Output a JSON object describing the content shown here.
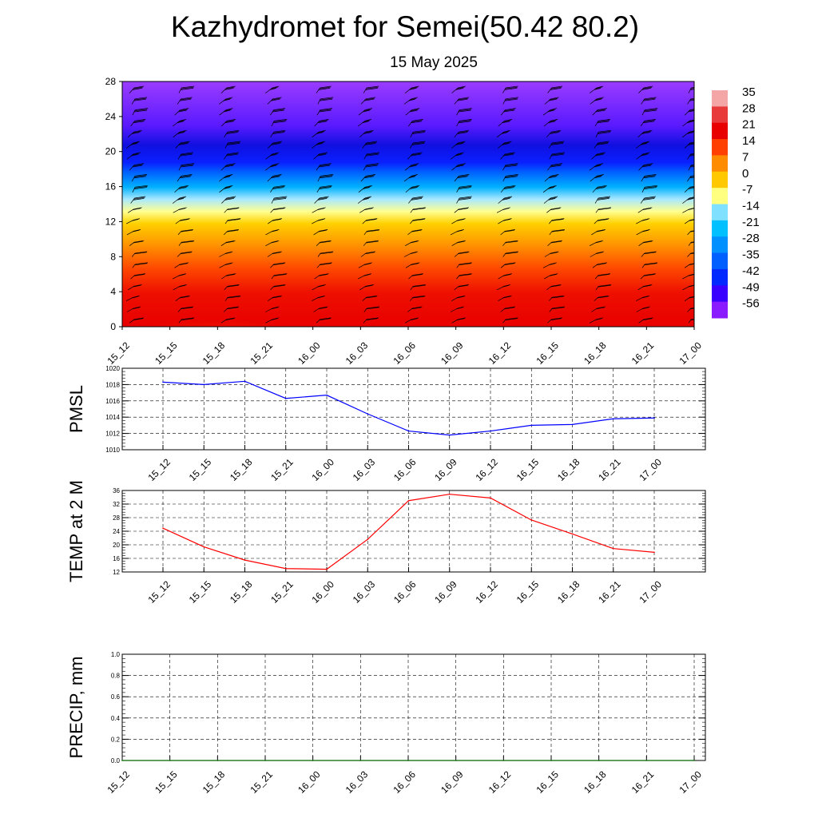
{
  "title": "Kazhydromet for Semei(50.42 80.2)",
  "subtitle": "15 May 2025",
  "time_labels": [
    "15_12",
    "15_15",
    "15_18",
    "15_21",
    "16_00",
    "16_03",
    "16_06",
    "16_09",
    "16_12",
    "16_15",
    "16_18",
    "16_21",
    "17_00"
  ],
  "colors": {
    "pmsl_line": "#0000ff",
    "temp_line": "#ff0000",
    "precip_line": "#006400",
    "barb": "#000000"
  },
  "chart_data": [
    {
      "type": "heatmap",
      "name": "vertical-section",
      "x": [
        "15_12",
        "15_15",
        "15_18",
        "15_21",
        "16_00",
        "16_03",
        "16_06",
        "16_09",
        "16_12",
        "16_15",
        "16_18",
        "16_21",
        "17_00"
      ],
      "y_ticks": [
        0,
        4,
        8,
        12,
        16,
        20,
        24,
        28
      ],
      "ylim": [
        0,
        28
      ],
      "colorbar": {
        "labels": [
          "35",
          "28",
          "21",
          "14",
          "7",
          "0",
          "-7",
          "-14",
          "-21",
          "-28",
          "-35",
          "-42",
          "-49",
          "-56"
        ],
        "colors": [
          "#f4a6a6",
          "#e83a3a",
          "#e80000",
          "#ff4000",
          "#ff8c00",
          "#ffc800",
          "#ffff80",
          "#80e0ff",
          "#00c0ff",
          "#0090ff",
          "#0060ff",
          "#0028ff",
          "#3a00ff",
          "#8a1aff"
        ]
      },
      "wind_barbs": true
    },
    {
      "type": "line",
      "ylabel": "PMSL",
      "x": [
        "15_12",
        "15_15",
        "15_18",
        "15_21",
        "16_00",
        "16_03",
        "16_06",
        "16_09",
        "16_12",
        "16_15",
        "16_18",
        "16_21",
        "17_00"
      ],
      "values": [
        1018.3,
        1018.0,
        1018.4,
        1016.3,
        1016.7,
        1014.4,
        1012.3,
        1011.8,
        1012.3,
        1013.0,
        1013.1,
        1013.8,
        1013.9
      ],
      "ylim": [
        1010,
        1020
      ],
      "y_ticks": [
        "1010",
        "1012",
        "1014",
        "1016",
        "1018",
        "1020"
      ],
      "grid": true
    },
    {
      "type": "line",
      "ylabel": "TEMP at 2 M",
      "x": [
        "15_12",
        "15_15",
        "15_18",
        "15_21",
        "16_00",
        "16_03",
        "16_06",
        "16_09",
        "16_12",
        "16_15",
        "16_18",
        "16_21",
        "17_00"
      ],
      "values": [
        24.9,
        19.4,
        15.5,
        13.0,
        12.8,
        21.6,
        33.0,
        34.9,
        33.8,
        27.3,
        23.2,
        18.9,
        17.8
      ],
      "ylim": [
        12,
        36
      ],
      "y_ticks": [
        "12",
        "16",
        "20",
        "24",
        "28",
        "32",
        "36"
      ],
      "grid": true
    },
    {
      "type": "line",
      "ylabel": "PRECIP, mm",
      "x": [
        "15_12",
        "15_15",
        "15_18",
        "15_21",
        "16_00",
        "16_03",
        "16_06",
        "16_09",
        "16_12",
        "16_15",
        "16_18",
        "16_21",
        "17_00"
      ],
      "values": [
        0,
        0,
        0,
        0,
        0,
        0,
        0,
        0,
        0,
        0,
        0,
        0,
        0
      ],
      "ylim": [
        0,
        1
      ],
      "y_ticks": [
        "0.0",
        "0.2",
        "0.4",
        "0.6",
        "0.8",
        "1.0"
      ],
      "grid": true
    }
  ]
}
